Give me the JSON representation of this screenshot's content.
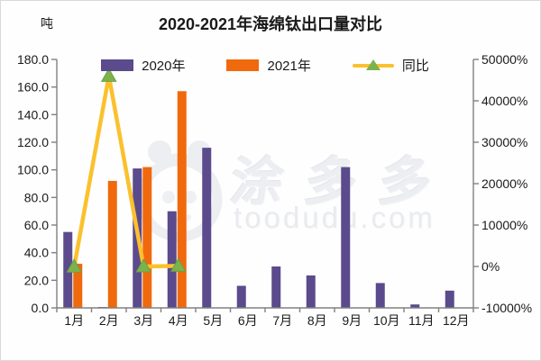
{
  "page": {
    "title": "2020-2021年海绵钛出口量对比",
    "unit_label": "吨"
  },
  "legend": {
    "items": [
      {
        "label": "2020年",
        "swatch": "bar",
        "color": "#5b4a8c"
      },
      {
        "label": "2021年",
        "swatch": "bar",
        "color": "#f1690d"
      },
      {
        "label": "同比",
        "swatch": "line-triangle",
        "color": "#fbc12d",
        "marker_color": "#7cb24e"
      }
    ]
  },
  "watermark": {
    "logo_icon": "tooduduo-panda-logo",
    "text_cn": "涂多多",
    "text_site": "toodudu.com"
  },
  "chart_data": {
    "type": "bar",
    "subtype": "combo-bar-line-dual-axis",
    "title": "2020-2021年海绵钛出口量对比",
    "categories": [
      "1月",
      "2月",
      "3月",
      "4月",
      "5月",
      "6月",
      "7月",
      "8月",
      "9月",
      "10月",
      "11月",
      "12月"
    ],
    "bar_series": [
      {
        "name": "2020年",
        "color": "#5b4a8c",
        "values": [
          55,
          0.2,
          101,
          70,
          116,
          16,
          30,
          23.5,
          102,
          18,
          2.5,
          12.5
        ]
      },
      {
        "name": "2021年",
        "color": "#f1690d",
        "values": [
          32,
          92,
          102,
          157,
          null,
          null,
          null,
          null,
          null,
          null,
          null,
          null
        ]
      }
    ],
    "line_series": [
      {
        "name": "同比",
        "axis": "right",
        "color": "#fbc12d",
        "marker": "triangle",
        "marker_color": "#7cb24e",
        "values": [
          -42,
          46000,
          1,
          124,
          null,
          null,
          null,
          null,
          null,
          null,
          null,
          null
        ]
      }
    ],
    "left_axis": {
      "unit": "吨",
      "min": 0,
      "max": 180,
      "step": 20,
      "tick_labels": [
        "0.0",
        "20.0",
        "40.0",
        "60.0",
        "80.0",
        "100.0",
        "120.0",
        "140.0",
        "160.0",
        "180.0"
      ]
    },
    "right_axis": {
      "min": -10000,
      "max": 50000,
      "step": 10000,
      "tick_labels": [
        "-10000%",
        "0%",
        "10000%",
        "20000%",
        "30000%",
        "40000%",
        "50000%"
      ]
    },
    "grid": false,
    "legend_position": "top"
  }
}
